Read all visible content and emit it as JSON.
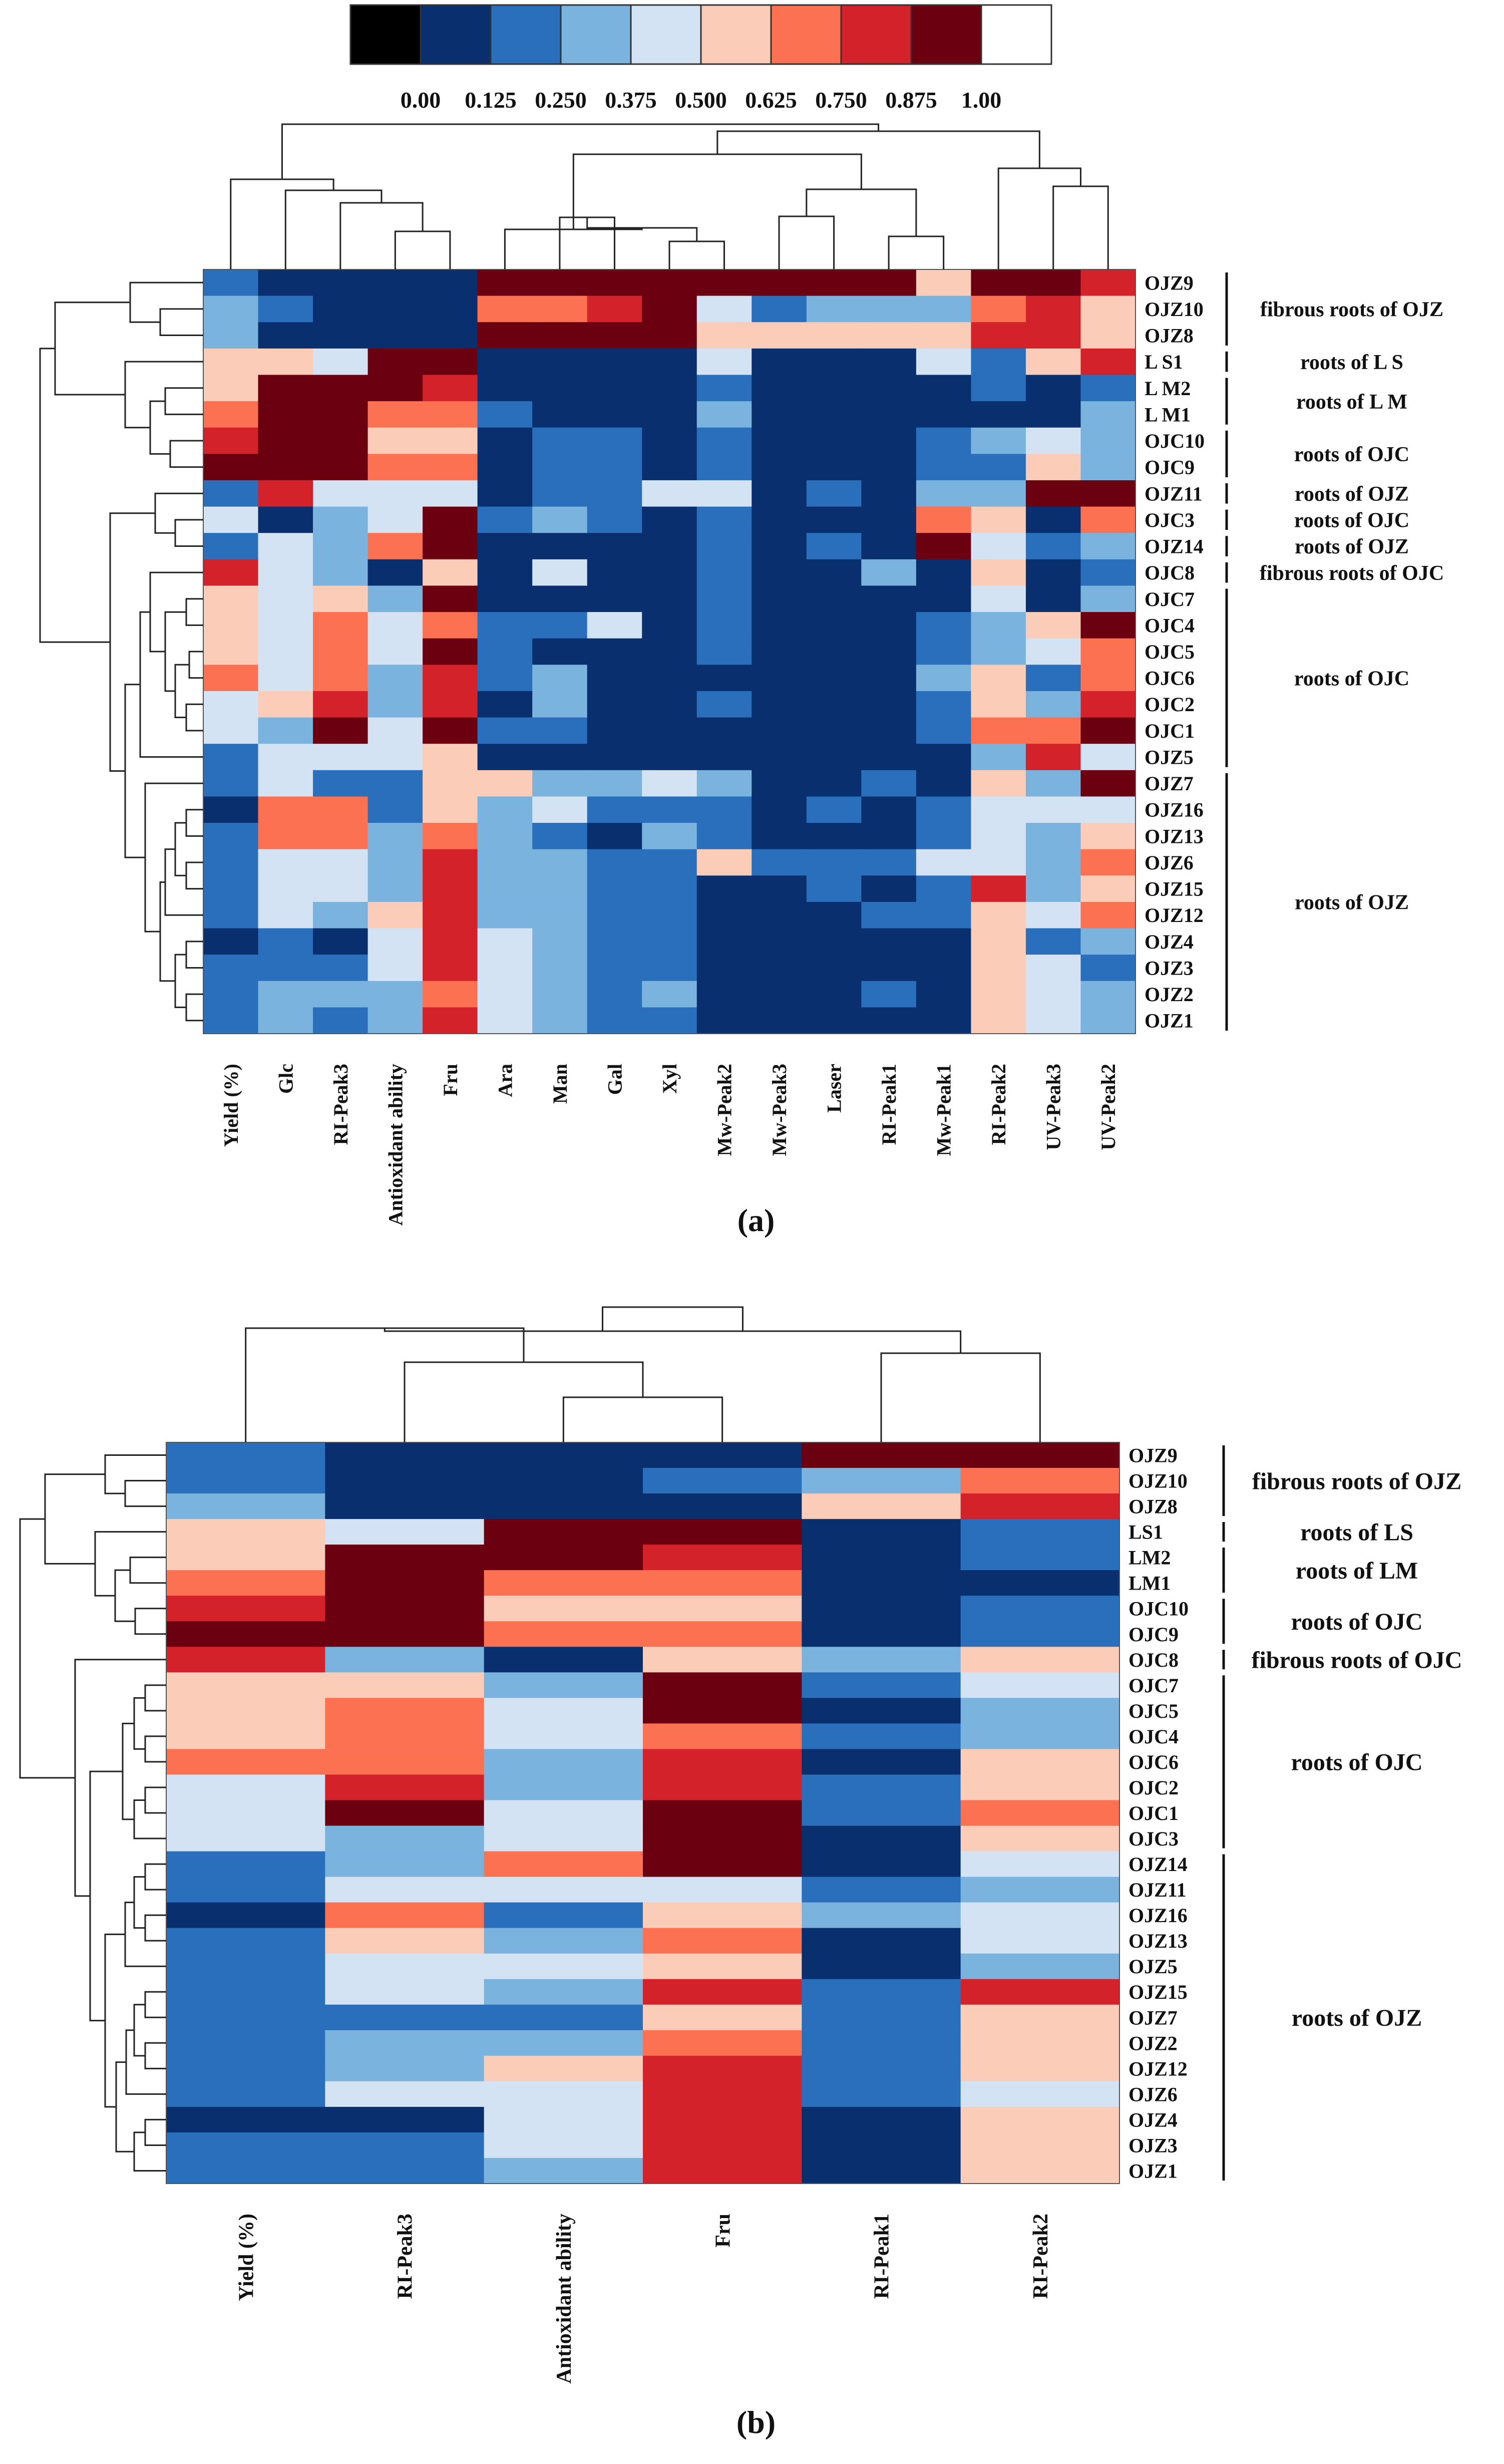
{
  "palette": {
    "boundaries": [
      "0.00",
      "0.125",
      "0.250",
      "0.375",
      "0.500",
      "0.625",
      "0.750",
      "0.875",
      "1.00"
    ],
    "colors": [
      "#000000",
      "#0a2f6e",
      "#2a6fbc",
      "#79b3de",
      "#d3e3f3",
      "#fbcdb8",
      "#fb7152",
      "#d3222a",
      "#6b0010",
      "#ffffff"
    ]
  },
  "chart_data": [
    {
      "type": "heatmap",
      "panel_label": "(a)",
      "columns": [
        "Yield (%)",
        "Glc",
        "RI-Peak3",
        "Antioxidant ability",
        "Fru",
        "Ara",
        "Man",
        "Gal",
        "Xyl",
        "Mw-Peak2",
        "Mw-Peak3",
        "Laser",
        "RI-Peak1",
        "Mw-Peak1",
        "RI-Peak2",
        "UV-Peak3",
        "UV-Peak2"
      ],
      "rows": [
        "OJZ9",
        "OJZ10",
        "OJZ8",
        "L S1",
        "L M2",
        "L M1",
        "OJC10",
        "OJC9",
        "OJZ11",
        "OJC3",
        "OJZ14",
        "OJC8",
        "OJC7",
        "OJC4",
        "OJC5",
        "OJC6",
        "OJC2",
        "OJC1",
        "OJZ5",
        "OJZ7",
        "OJZ16",
        "OJZ13",
        "OJZ6",
        "OJZ15",
        "OJZ12",
        "OJZ4",
        "OJZ3",
        "OJZ2",
        "OJZ1"
      ],
      "values_color_class": [
        [
          2,
          1,
          1,
          1,
          1,
          8,
          8,
          8,
          8,
          8,
          8,
          8,
          8,
          5,
          8,
          8,
          7
        ],
        [
          3,
          2,
          1,
          1,
          1,
          6,
          6,
          7,
          8,
          4,
          2,
          3,
          3,
          3,
          6,
          7,
          5
        ],
        [
          3,
          1,
          1,
          1,
          1,
          8,
          8,
          8,
          8,
          5,
          5,
          5,
          5,
          5,
          7,
          7,
          5
        ],
        [
          5,
          5,
          4,
          8,
          8,
          1,
          1,
          1,
          1,
          4,
          1,
          1,
          1,
          4,
          2,
          5,
          7
        ],
        [
          5,
          8,
          8,
          8,
          7,
          1,
          1,
          1,
          1,
          2,
          1,
          1,
          1,
          1,
          2,
          1,
          2
        ],
        [
          6,
          8,
          8,
          6,
          6,
          2,
          1,
          1,
          1,
          3,
          1,
          1,
          1,
          1,
          1,
          1,
          3
        ],
        [
          7,
          8,
          8,
          5,
          5,
          1,
          2,
          2,
          1,
          2,
          1,
          1,
          1,
          2,
          3,
          4,
          3
        ],
        [
          8,
          8,
          8,
          6,
          6,
          1,
          2,
          2,
          1,
          2,
          1,
          1,
          1,
          2,
          2,
          5,
          3
        ],
        [
          2,
          7,
          4,
          4,
          4,
          1,
          2,
          2,
          4,
          4,
          1,
          2,
          1,
          3,
          3,
          8,
          8
        ],
        [
          4,
          1,
          3,
          4,
          8,
          2,
          3,
          2,
          1,
          2,
          1,
          1,
          1,
          6,
          5,
          1,
          6
        ],
        [
          2,
          4,
          3,
          6,
          8,
          1,
          1,
          1,
          1,
          2,
          1,
          2,
          1,
          8,
          4,
          2,
          3
        ],
        [
          7,
          4,
          3,
          1,
          5,
          1,
          4,
          1,
          1,
          2,
          1,
          1,
          3,
          1,
          5,
          1,
          2
        ],
        [
          5,
          4,
          5,
          3,
          8,
          1,
          1,
          1,
          1,
          2,
          1,
          1,
          1,
          1,
          4,
          1,
          3
        ],
        [
          5,
          4,
          6,
          4,
          6,
          2,
          2,
          4,
          1,
          2,
          1,
          1,
          1,
          2,
          3,
          5,
          8
        ],
        [
          5,
          4,
          6,
          4,
          8,
          2,
          1,
          1,
          1,
          2,
          1,
          1,
          1,
          2,
          3,
          4,
          6
        ],
        [
          6,
          4,
          6,
          3,
          7,
          2,
          3,
          1,
          1,
          1,
          1,
          1,
          1,
          3,
          5,
          2,
          6
        ],
        [
          4,
          5,
          7,
          3,
          7,
          1,
          3,
          1,
          1,
          2,
          1,
          1,
          1,
          2,
          5,
          3,
          7
        ],
        [
          4,
          3,
          8,
          4,
          8,
          2,
          2,
          1,
          1,
          1,
          1,
          1,
          1,
          2,
          6,
          6,
          8
        ],
        [
          2,
          4,
          4,
          4,
          5,
          1,
          1,
          1,
          1,
          1,
          1,
          1,
          1,
          1,
          3,
          7,
          4
        ],
        [
          2,
          4,
          2,
          2,
          5,
          5,
          3,
          3,
          4,
          3,
          1,
          1,
          2,
          1,
          5,
          3,
          8
        ],
        [
          1,
          6,
          6,
          2,
          5,
          3,
          4,
          2,
          2,
          2,
          1,
          2,
          1,
          2,
          4,
          4,
          4
        ],
        [
          2,
          6,
          6,
          3,
          6,
          3,
          2,
          1,
          3,
          2,
          1,
          1,
          1,
          2,
          4,
          3,
          5
        ],
        [
          2,
          4,
          4,
          3,
          7,
          3,
          3,
          2,
          2,
          5,
          2,
          2,
          2,
          4,
          4,
          3,
          6
        ],
        [
          2,
          4,
          4,
          3,
          7,
          3,
          3,
          2,
          2,
          1,
          1,
          2,
          1,
          2,
          7,
          3,
          5
        ],
        [
          2,
          4,
          3,
          5,
          7,
          3,
          3,
          2,
          2,
          1,
          1,
          1,
          2,
          2,
          5,
          4,
          6
        ],
        [
          1,
          2,
          1,
          4,
          7,
          4,
          3,
          2,
          2,
          1,
          1,
          1,
          1,
          1,
          5,
          2,
          3
        ],
        [
          2,
          2,
          2,
          4,
          7,
          4,
          3,
          2,
          2,
          1,
          1,
          1,
          1,
          1,
          5,
          4,
          2
        ],
        [
          2,
          3,
          3,
          3,
          6,
          4,
          3,
          2,
          3,
          1,
          1,
          1,
          2,
          1,
          5,
          4,
          3
        ],
        [
          2,
          3,
          2,
          3,
          7,
          4,
          3,
          2,
          2,
          1,
          1,
          1,
          1,
          1,
          5,
          4,
          3
        ]
      ],
      "groups": [
        {
          "label": "fibrous roots of OJZ",
          "rows": [
            0,
            2
          ]
        },
        {
          "label": "roots of L S",
          "rows": [
            3,
            3
          ]
        },
        {
          "label": "roots of L M",
          "rows": [
            4,
            5
          ]
        },
        {
          "label": "roots of OJC",
          "rows": [
            6,
            7
          ]
        },
        {
          "label": "roots of OJZ",
          "rows": [
            8,
            8
          ]
        },
        {
          "label": "roots of OJC",
          "rows": [
            9,
            9
          ]
        },
        {
          "label": "roots of OJZ",
          "rows": [
            10,
            10
          ]
        },
        {
          "label": "fibrous roots of OJC",
          "rows": [
            11,
            11
          ]
        },
        {
          "label": "roots of OJC",
          "rows": [
            12,
            18
          ]
        },
        {
          "label": "roots of OJZ",
          "rows": [
            19,
            28
          ]
        }
      ]
    },
    {
      "type": "heatmap",
      "panel_label": "(b)",
      "columns": [
        "Yield (%)",
        "RI-Peak3",
        "Antioxidant ability",
        "Fru",
        "RI-Peak1",
        "RI-Peak2"
      ],
      "rows": [
        "OJZ9",
        "OJZ10",
        "OJZ8",
        "LS1",
        "LM2",
        "LM1",
        "OJC10",
        "OJC9",
        "OJC8",
        "OJC7",
        "OJC5",
        "OJC4",
        "OJC6",
        "OJC2",
        "OJC1",
        "OJC3",
        "OJZ14",
        "OJZ11",
        "OJZ16",
        "OJZ13",
        "OJZ5",
        "OJZ15",
        "OJZ7",
        "OJZ2",
        "OJZ12",
        "OJZ6",
        "OJZ4",
        "OJZ3",
        "OJZ1"
      ],
      "values_color_class": [
        [
          2,
          1,
          1,
          1,
          8,
          8
        ],
        [
          2,
          1,
          1,
          2,
          3,
          6
        ],
        [
          3,
          1,
          1,
          1,
          5,
          7
        ],
        [
          5,
          4,
          8,
          8,
          1,
          2
        ],
        [
          5,
          8,
          8,
          7,
          1,
          2
        ],
        [
          6,
          8,
          6,
          6,
          1,
          1
        ],
        [
          7,
          8,
          5,
          5,
          1,
          2
        ],
        [
          8,
          8,
          6,
          6,
          1,
          2
        ],
        [
          7,
          3,
          1,
          5,
          3,
          5
        ],
        [
          5,
          5,
          3,
          8,
          2,
          4
        ],
        [
          5,
          6,
          4,
          8,
          1,
          3
        ],
        [
          5,
          6,
          4,
          6,
          2,
          3
        ],
        [
          6,
          6,
          3,
          7,
          1,
          5
        ],
        [
          4,
          7,
          3,
          7,
          2,
          5
        ],
        [
          4,
          8,
          4,
          8,
          2,
          6
        ],
        [
          4,
          3,
          4,
          8,
          1,
          5
        ],
        [
          2,
          3,
          6,
          8,
          1,
          4
        ],
        [
          2,
          4,
          4,
          4,
          2,
          3
        ],
        [
          1,
          6,
          2,
          5,
          3,
          4
        ],
        [
          2,
          5,
          3,
          6,
          1,
          4
        ],
        [
          2,
          4,
          4,
          5,
          1,
          3
        ],
        [
          2,
          4,
          3,
          7,
          2,
          7
        ],
        [
          2,
          2,
          2,
          5,
          2,
          5
        ],
        [
          2,
          3,
          3,
          6,
          2,
          5
        ],
        [
          2,
          3,
          5,
          7,
          2,
          5
        ],
        [
          2,
          4,
          4,
          7,
          2,
          4
        ],
        [
          1,
          1,
          4,
          7,
          1,
          5
        ],
        [
          2,
          2,
          4,
          7,
          1,
          5
        ],
        [
          2,
          2,
          3,
          7,
          1,
          5
        ]
      ],
      "groups": [
        {
          "label": "fibrous roots of OJZ",
          "rows": [
            0,
            2
          ]
        },
        {
          "label": "roots of LS",
          "rows": [
            3,
            3
          ]
        },
        {
          "label": "roots of LM",
          "rows": [
            4,
            5
          ]
        },
        {
          "label": "roots of OJC",
          "rows": [
            6,
            7
          ]
        },
        {
          "label": "fibrous roots of OJC",
          "rows": [
            8,
            8
          ]
        },
        {
          "label": "roots of OJC",
          "rows": [
            9,
            15
          ]
        },
        {
          "label": "roots of OJZ",
          "rows": [
            16,
            28
          ]
        }
      ]
    }
  ]
}
